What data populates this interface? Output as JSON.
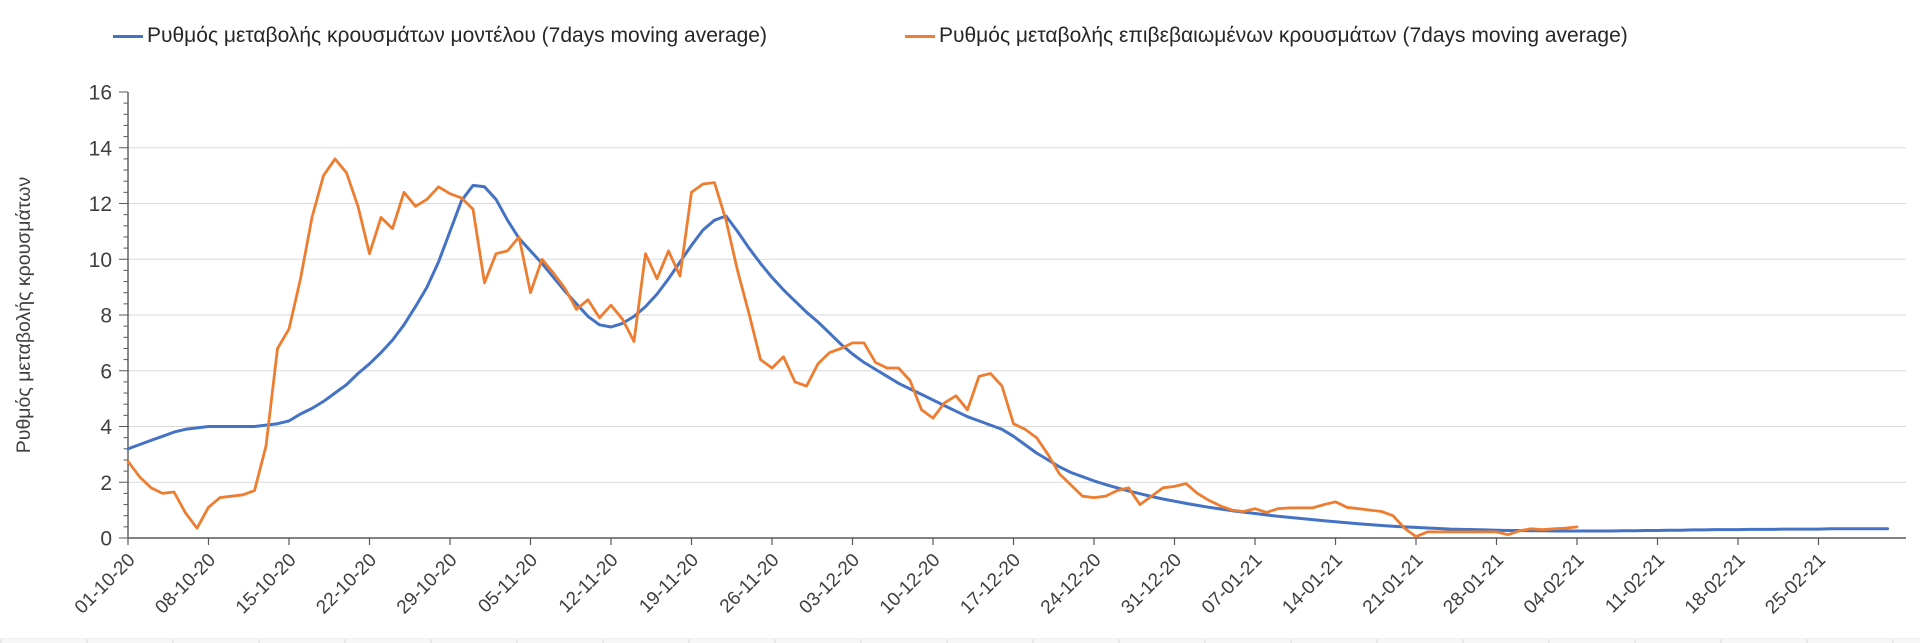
{
  "page": {
    "background": "#ffffff"
  },
  "legend": {
    "items": [
      {
        "label": "Ρυθμός μεταβολής κρουσμάτων μοντέλου (7days moving average)",
        "color": "#4472c4"
      },
      {
        "label": "Ρυθμός μεταβολής επιβεβαιωμένων κρουσμάτων (7days moving average)",
        "color": "#ed7d31"
      }
    ]
  },
  "chart_data": {
    "type": "line",
    "title": "",
    "xlabel": "",
    "ylabel": "Ρυθμός μεταβολής κρουσμάτων",
    "ylim": [
      0,
      16
    ],
    "ytick_step": 2,
    "y_minor_tick_step": 0.4,
    "grid": true,
    "grid_color": "#d9d9d9",
    "axis_color": "#595959",
    "label_color": "#3f3f3f",
    "legend_position": "top",
    "x_tick_labels": [
      "01-10-20",
      "08-10-20",
      "15-10-20",
      "22-10-20",
      "29-10-20",
      "05-11-20",
      "12-11-20",
      "19-11-20",
      "26-11-20",
      "03-12-20",
      "10-12-20",
      "17-12-20",
      "24-12-20",
      "31-12-20",
      "07-01-21",
      "14-01-21",
      "21-01-21",
      "28-01-21",
      "04-02-21",
      "11-02-21",
      "18-02-21",
      "25-02-21"
    ],
    "x_ticks_every_days": 7,
    "x_unit": "day",
    "series": [
      {
        "name": "Ρυθμός μεταβολής κρουσμάτων μοντέλου (7days moving average)",
        "color": "#4472c4",
        "stroke_width": 3,
        "start": "01-10-20",
        "end": "03-03-21",
        "values": [
          3.2,
          3.35,
          3.5,
          3.65,
          3.8,
          3.9,
          3.95,
          4.0,
          4.0,
          4.0,
          4.0,
          4.0,
          4.05,
          4.1,
          4.2,
          4.45,
          4.65,
          4.9,
          5.2,
          5.5,
          5.9,
          6.25,
          6.65,
          7.1,
          7.65,
          8.3,
          9.0,
          9.9,
          11.0,
          12.1,
          12.65,
          12.6,
          12.15,
          11.4,
          10.75,
          10.3,
          9.85,
          9.35,
          8.85,
          8.4,
          7.95,
          7.65,
          7.57,
          7.7,
          7.95,
          8.3,
          8.75,
          9.3,
          9.9,
          10.5,
          11.05,
          11.4,
          11.55,
          11.0,
          10.4,
          9.85,
          9.35,
          8.9,
          8.5,
          8.1,
          7.75,
          7.35,
          6.95,
          6.6,
          6.3,
          6.05,
          5.8,
          5.55,
          5.35,
          5.15,
          4.95,
          4.75,
          4.55,
          4.35,
          4.2,
          4.05,
          3.9,
          3.65,
          3.35,
          3.05,
          2.8,
          2.55,
          2.35,
          2.2,
          2.05,
          1.92,
          1.8,
          1.69,
          1.59,
          1.49,
          1.4,
          1.32,
          1.24,
          1.17,
          1.1,
          1.04,
          0.98,
          0.93,
          0.88,
          0.83,
          0.78,
          0.74,
          0.7,
          0.66,
          0.62,
          0.58,
          0.55,
          0.51,
          0.48,
          0.45,
          0.42,
          0.4,
          0.38,
          0.36,
          0.34,
          0.32,
          0.31,
          0.3,
          0.29,
          0.28,
          0.27,
          0.27,
          0.26,
          0.26,
          0.25,
          0.25,
          0.25,
          0.25,
          0.25,
          0.25,
          0.26,
          0.26,
          0.27,
          0.27,
          0.28,
          0.28,
          0.29,
          0.29,
          0.3,
          0.3,
          0.3,
          0.31,
          0.31,
          0.31,
          0.32,
          0.32,
          0.32,
          0.32,
          0.33,
          0.33,
          0.33,
          0.33,
          0.33,
          0.33
        ]
      },
      {
        "name": "Ρυθμός μεταβολής επιβεβαιωμένων κρουσμάτων (7days moving average)",
        "color": "#ed7d31",
        "stroke_width": 2.8,
        "start": "01-10-20",
        "end": "04-02-21",
        "values": [
          2.75,
          2.2,
          1.8,
          1.6,
          1.65,
          0.9,
          0.35,
          1.1,
          1.45,
          1.5,
          1.55,
          1.7,
          3.3,
          6.8,
          7.5,
          9.3,
          11.5,
          13.0,
          13.6,
          13.1,
          11.9,
          10.2,
          11.5,
          11.1,
          12.4,
          11.9,
          12.15,
          12.6,
          12.35,
          12.2,
          11.8,
          9.15,
          10.2,
          10.3,
          10.8,
          8.8,
          10.0,
          9.5,
          8.95,
          8.2,
          8.55,
          7.9,
          8.35,
          7.85,
          7.05,
          10.2,
          9.3,
          10.3,
          9.4,
          12.4,
          12.7,
          12.75,
          11.4,
          9.6,
          8.05,
          6.4,
          6.1,
          6.5,
          5.6,
          5.45,
          6.25,
          6.65,
          6.8,
          7.0,
          7.0,
          6.3,
          6.1,
          6.1,
          5.65,
          4.6,
          4.3,
          4.85,
          5.1,
          4.6,
          5.8,
          5.9,
          5.45,
          4.1,
          3.9,
          3.6,
          3.0,
          2.3,
          1.9,
          1.5,
          1.45,
          1.5,
          1.7,
          1.8,
          1.2,
          1.5,
          1.8,
          1.85,
          1.95,
          1.6,
          1.35,
          1.15,
          1.0,
          0.95,
          1.05,
          0.92,
          1.05,
          1.08,
          1.08,
          1.08,
          1.2,
          1.3,
          1.1,
          1.05,
          1.0,
          0.95,
          0.8,
          0.35,
          0.05,
          0.22,
          0.22,
          0.22,
          0.22,
          0.22,
          0.22,
          0.22,
          0.12,
          0.26,
          0.33,
          0.3,
          0.33,
          0.35,
          0.4
        ]
      }
    ]
  }
}
